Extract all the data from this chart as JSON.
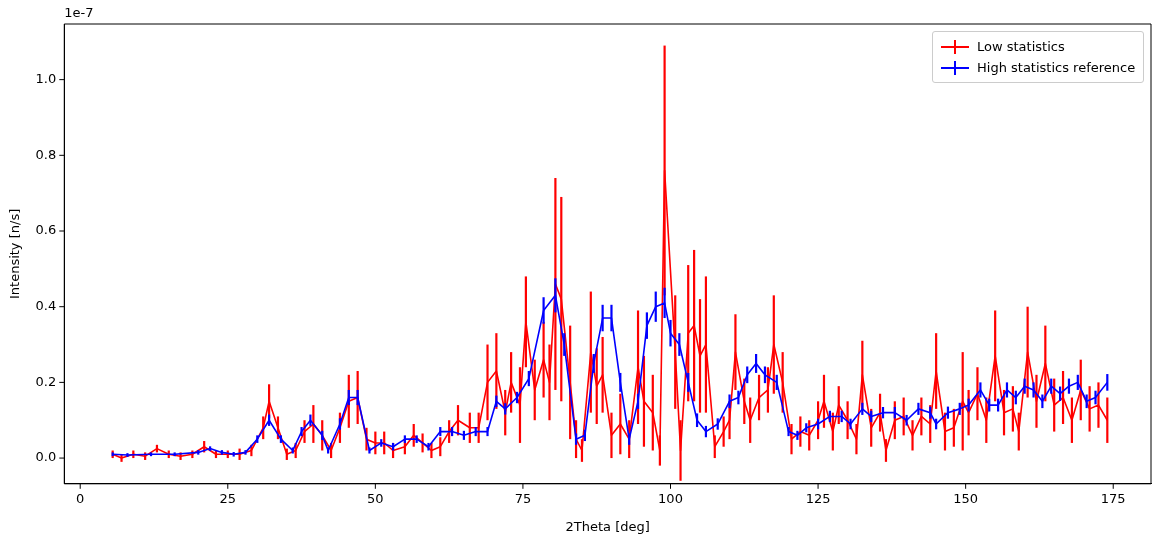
{
  "chart_data": {
    "type": "line",
    "xlabel": "2Theta [deg]",
    "ylabel": "Intensity [n/s]",
    "annotations": [
      "1e-7"
    ],
    "legend": "top right",
    "grid": false,
    "marker": "none",
    "line_style": "solid",
    "xlim": [
      -2.7,
      181.4
    ],
    "xticks": [
      0,
      25,
      50,
      75,
      100,
      125,
      150,
      175
    ],
    "ylim": [
      -0.068,
      1.147
    ],
    "yticks": [
      {
        "value": 0,
        "label": "0.0"
      },
      {
        "value": 0.2,
        "label": "0.2"
      },
      {
        "value": 0.4,
        "label": "0.4"
      },
      {
        "value": 0.6,
        "label": "0.6"
      },
      {
        "value": 0.8,
        "label": "0.8"
      },
      {
        "value": 1.0,
        "label": "1.0"
      }
    ],
    "series": [
      {
        "name": "Low statistics",
        "color": "#ff0000",
        "x": [
          5.5,
          7,
          9,
          11,
          13,
          15,
          17,
          19,
          21,
          23,
          25,
          27,
          29,
          31,
          32,
          33.5,
          35,
          36.5,
          38,
          39.5,
          41,
          42.5,
          44,
          45.5,
          47,
          48.5,
          50,
          51.5,
          53,
          55,
          56.5,
          58,
          59.5,
          61,
          62.5,
          64,
          66,
          67.5,
          69,
          70.5,
          72,
          73,
          74.5,
          75.5,
          77,
          78.5,
          79.5,
          80.5,
          81.5,
          83,
          84,
          85,
          86.5,
          87.5,
          88.5,
          90,
          91.5,
          93,
          94.5,
          95.5,
          97,
          98.2,
          99,
          100.8,
          101.7,
          103,
          104,
          105,
          106,
          107.5,
          109,
          110,
          111,
          112.5,
          113.5,
          115,
          116.5,
          117.5,
          119,
          120.5,
          122,
          123.5,
          125,
          126,
          127.5,
          128.5,
          130,
          131.5,
          132.5,
          134,
          135.5,
          136.5,
          138,
          139.5,
          141,
          142.5,
          144,
          145,
          146.5,
          148,
          149.5,
          150.5,
          152,
          153.5,
          155,
          156.5,
          158,
          159,
          160.5,
          162,
          163.5,
          165,
          166.5,
          168,
          169.5,
          171,
          172.5,
          174
        ],
        "values": [
          0.01,
          0.0,
          0.01,
          0.005,
          0.025,
          0.01,
          0.005,
          0.01,
          0.03,
          0.01,
          0.01,
          0.01,
          0.02,
          0.08,
          0.15,
          0.08,
          0.01,
          0.02,
          0.07,
          0.09,
          0.06,
          0.02,
          0.08,
          0.15,
          0.16,
          0.05,
          0.04,
          0.04,
          0.02,
          0.03,
          0.06,
          0.04,
          0.02,
          0.03,
          0.07,
          0.1,
          0.08,
          0.08,
          0.2,
          0.23,
          0.12,
          0.2,
          0.14,
          0.36,
          0.18,
          0.26,
          0.2,
          0.46,
          0.42,
          0.2,
          0.05,
          0.02,
          0.28,
          0.19,
          0.22,
          0.06,
          0.09,
          0.05,
          0.24,
          0.15,
          0.12,
          0.02,
          0.76,
          0.28,
          0.02,
          0.33,
          0.35,
          0.27,
          0.3,
          0.03,
          0.07,
          0.1,
          0.28,
          0.15,
          0.1,
          0.16,
          0.18,
          0.3,
          0.2,
          0.05,
          0.07,
          0.06,
          0.1,
          0.15,
          0.07,
          0.14,
          0.1,
          0.05,
          0.22,
          0.08,
          0.12,
          0.02,
          0.1,
          0.11,
          0.06,
          0.11,
          0.09,
          0.23,
          0.07,
          0.08,
          0.15,
          0.12,
          0.17,
          0.1,
          0.27,
          0.12,
          0.13,
          0.07,
          0.28,
          0.15,
          0.25,
          0.14,
          0.16,
          0.1,
          0.18,
          0.13,
          0.14,
          0.1
        ],
        "errors": [
          0.01,
          0.01,
          0.01,
          0.01,
          0.01,
          0.01,
          0.01,
          0.01,
          0.015,
          0.01,
          0.01,
          0.015,
          0.015,
          0.03,
          0.045,
          0.03,
          0.015,
          0.02,
          0.03,
          0.05,
          0.04,
          0.02,
          0.04,
          0.07,
          0.07,
          0.03,
          0.03,
          0.03,
          0.02,
          0.02,
          0.03,
          0.025,
          0.02,
          0.025,
          0.03,
          0.04,
          0.04,
          0.04,
          0.1,
          0.1,
          0.06,
          0.08,
          0.1,
          0.12,
          0.08,
          0.1,
          0.1,
          0.28,
          0.27,
          0.15,
          0.05,
          0.03,
          0.16,
          0.1,
          0.1,
          0.06,
          0.08,
          0.05,
          0.15,
          0.12,
          0.1,
          0.04,
          0.33,
          0.15,
          0.08,
          0.18,
          0.2,
          0.15,
          0.18,
          0.03,
          0.04,
          0.05,
          0.1,
          0.06,
          0.06,
          0.06,
          0.06,
          0.13,
          0.08,
          0.04,
          0.04,
          0.04,
          0.05,
          0.07,
          0.05,
          0.05,
          0.05,
          0.04,
          0.09,
          0.05,
          0.05,
          0.03,
          0.05,
          0.05,
          0.04,
          0.05,
          0.05,
          0.1,
          0.05,
          0.05,
          0.13,
          0.06,
          0.07,
          0.06,
          0.12,
          0.06,
          0.06,
          0.05,
          0.12,
          0.07,
          0.1,
          0.07,
          0.07,
          0.06,
          0.08,
          0.06,
          0.06,
          0.06
        ]
      },
      {
        "name": "High statistics reference",
        "color": "#0000ff",
        "x": [
          5.5,
          8,
          12,
          16,
          20,
          22,
          24,
          26,
          28,
          30,
          32,
          34,
          36,
          37.5,
          39,
          41,
          42,
          44,
          45.5,
          47,
          49,
          51,
          53,
          55,
          57,
          59,
          61,
          63,
          65,
          67,
          69,
          70.5,
          72,
          74,
          76,
          78.5,
          80.5,
          82,
          84,
          85.5,
          87,
          88.5,
          90,
          91.5,
          93,
          94.5,
          96,
          97.5,
          99,
          100,
          101.5,
          103,
          104.5,
          106,
          108,
          110,
          111.5,
          113,
          114.5,
          116,
          118,
          120,
          121.5,
          123,
          125,
          127,
          129,
          130.5,
          132.5,
          134,
          136,
          138,
          140,
          142,
          144,
          145,
          147,
          149,
          150.5,
          152.5,
          154,
          155.5,
          157,
          158.5,
          160,
          161.5,
          163,
          164.5,
          166,
          167.5,
          169,
          170.5,
          172,
          174
        ],
        "values": [
          0.01,
          0.008,
          0.01,
          0.01,
          0.015,
          0.025,
          0.015,
          0.01,
          0.015,
          0.05,
          0.1,
          0.05,
          0.02,
          0.07,
          0.1,
          0.06,
          0.02,
          0.09,
          0.16,
          0.16,
          0.02,
          0.04,
          0.03,
          0.05,
          0.05,
          0.03,
          0.07,
          0.07,
          0.06,
          0.07,
          0.07,
          0.15,
          0.13,
          0.16,
          0.21,
          0.39,
          0.43,
          0.3,
          0.05,
          0.06,
          0.25,
          0.37,
          0.37,
          0.2,
          0.05,
          0.15,
          0.35,
          0.4,
          0.41,
          0.33,
          0.3,
          0.2,
          0.1,
          0.07,
          0.09,
          0.15,
          0.16,
          0.22,
          0.25,
          0.22,
          0.2,
          0.07,
          0.06,
          0.08,
          0.09,
          0.11,
          0.11,
          0.09,
          0.13,
          0.11,
          0.12,
          0.12,
          0.1,
          0.13,
          0.12,
          0.09,
          0.12,
          0.13,
          0.14,
          0.18,
          0.14,
          0.14,
          0.18,
          0.16,
          0.19,
          0.18,
          0.15,
          0.19,
          0.17,
          0.19,
          0.2,
          0.15,
          0.16,
          0.2
        ],
        "errors": [
          0.005,
          0.005,
          0.005,
          0.005,
          0.006,
          0.006,
          0.006,
          0.006,
          0.006,
          0.01,
          0.015,
          0.01,
          0.008,
          0.012,
          0.015,
          0.012,
          0.008,
          0.015,
          0.02,
          0.02,
          0.008,
          0.01,
          0.01,
          0.01,
          0.01,
          0.01,
          0.012,
          0.012,
          0.012,
          0.012,
          0.012,
          0.015,
          0.015,
          0.015,
          0.02,
          0.035,
          0.045,
          0.03,
          0.015,
          0.015,
          0.025,
          0.035,
          0.035,
          0.025,
          0.015,
          0.02,
          0.035,
          0.04,
          0.04,
          0.035,
          0.03,
          0.025,
          0.018,
          0.015,
          0.015,
          0.018,
          0.018,
          0.022,
          0.025,
          0.022,
          0.02,
          0.012,
          0.012,
          0.012,
          0.014,
          0.015,
          0.015,
          0.014,
          0.016,
          0.015,
          0.015,
          0.015,
          0.014,
          0.016,
          0.016,
          0.014,
          0.016,
          0.016,
          0.017,
          0.02,
          0.017,
          0.017,
          0.02,
          0.018,
          0.02,
          0.02,
          0.018,
          0.02,
          0.019,
          0.02,
          0.02,
          0.018,
          0.018,
          0.022
        ]
      }
    ]
  }
}
